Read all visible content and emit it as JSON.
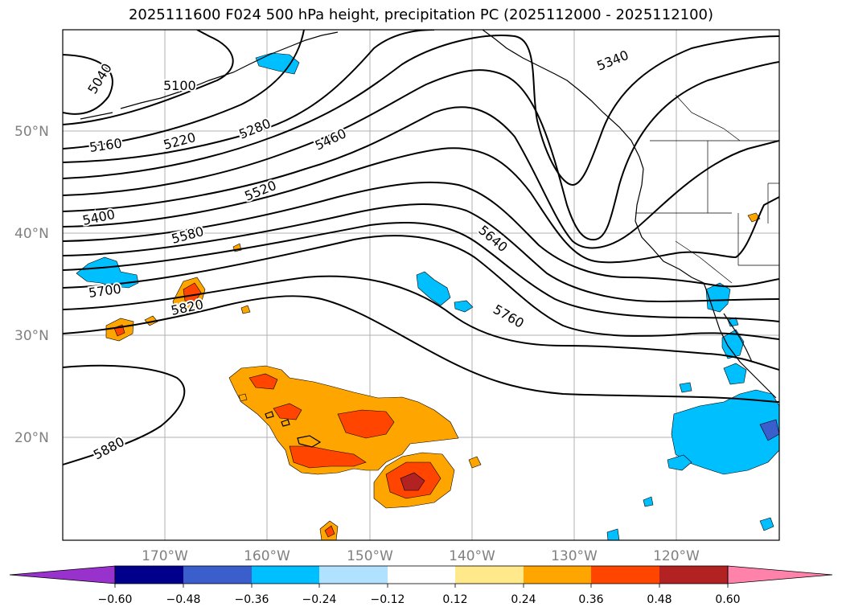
{
  "title": "2025111600 F024 500 hPa height, precipitation PC (2025112000 - 2025112100)",
  "lat_labels": [
    "50°N",
    "40°N",
    "30°N",
    "20°N"
  ],
  "lon_labels": [
    "170°W",
    "160°W",
    "150°W",
    "140°W",
    "130°W",
    "120°W"
  ],
  "contour_labels": [
    "5040",
    "5100",
    "5160",
    "5220",
    "5280",
    "5340",
    "5400",
    "5460",
    "5520",
    "5580",
    "5640",
    "5700",
    "5760",
    "5820",
    "5880"
  ],
  "colorbar": {
    "labels": [
      "−0.60",
      "−0.48",
      "−0.36",
      "−0.24",
      "−0.12",
      "0.12",
      "0.24",
      "0.36",
      "0.48",
      "0.60"
    ],
    "colors": [
      "#9932CC",
      "#00008B",
      "#3A5FCD",
      "#00BFFF",
      "#B0E2FF",
      "#FFFFFF",
      "#FFE98A",
      "#FFA500",
      "#FF4500",
      "#B22222",
      "#FF82AB"
    ]
  },
  "precip_colors": {
    "orange": "#FFA500",
    "red_orange": "#FF4500",
    "dark_red": "#B22222",
    "sky_blue": "#00BFFF",
    "blue": "#3A5FCD"
  }
}
